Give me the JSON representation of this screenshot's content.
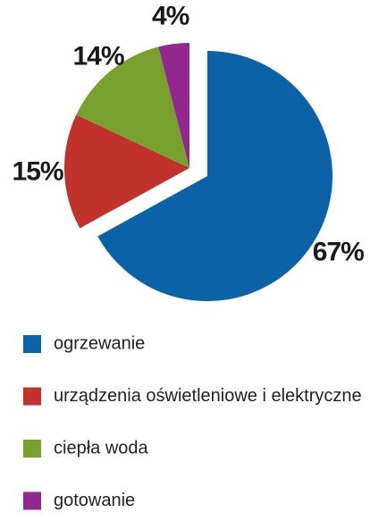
{
  "chart_data": {
    "type": "pie",
    "categories": [
      "ogrzewanie",
      "urządzenia oświetleniowe i elektryczne",
      "ciepła woda",
      "gotowanie"
    ],
    "values": [
      67,
      15,
      14,
      4
    ],
    "value_labels": [
      "67%",
      "15%",
      "14%",
      "4%"
    ],
    "colors": [
      "#0b62a7",
      "#c0322b",
      "#77a02f",
      "#92278f"
    ],
    "exploded": [
      true,
      false,
      false,
      false
    ]
  }
}
